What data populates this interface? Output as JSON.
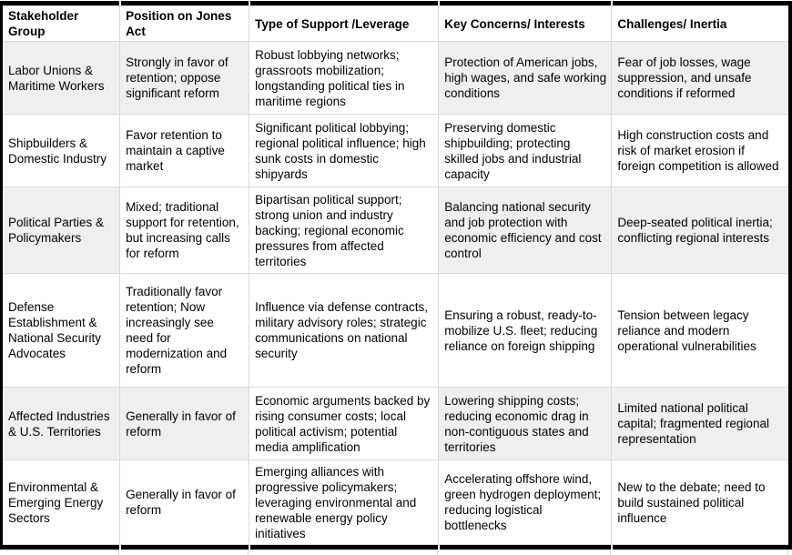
{
  "table": {
    "band_color": "#efefef",
    "grid_line_color": "#d9d9d9",
    "outer_border_color": "#000000",
    "columns": [
      {
        "label": "Stakeholder Group"
      },
      {
        "label": "Position on Jones Act"
      },
      {
        "label": "Type of Support /Leverage"
      },
      {
        "label": "Key Concerns/ Interests"
      },
      {
        "label": "Challenges/ Inertia"
      }
    ],
    "rows": [
      {
        "cells": [
          "Labor Unions & Maritime Workers",
          "Strongly in favor of retention; oppose significant reform",
          "Robust lobbying networks; grassroots mobilization; longstanding political ties in maritime regions",
          "Protection of American jobs, high wages, and safe working conditions",
          "Fear of job losses, wage suppression, and unsafe conditions if reformed"
        ]
      },
      {
        "cells": [
          "Shipbuilders & Domestic Industry",
          "Favor retention to maintain a captive market",
          "Significant political lobbying; regional political influence; high sunk costs in domestic shipyards",
          "Preserving domestic shipbuilding; protecting skilled jobs and industrial capacity",
          "High construction costs and risk of market erosion if foreign competition is allowed"
        ]
      },
      {
        "cells": [
          "Political Parties & Policymakers",
          "Mixed; traditional support for retention, but increasing calls for reform",
          "Bipartisan political support; strong union and industry backing; regional economic pressures from affected territories",
          "Balancing national security and job protection with economic efficiency and cost control",
          "Deep-seated political inertia; conflicting regional interests"
        ]
      },
      {
        "cells": [
          "Defense Establishment & National Security Advocates",
          "Traditionally favor retention; Now increasingly see need for modernization and reform",
          "Influence via defense contracts, military advisory roles; strategic communications on national security",
          "Ensuring a robust, ready-to-mobilize U.S. fleet; reducing reliance on foreign shipping",
          "Tension between legacy reliance and modern operational vulnerabilities"
        ]
      },
      {
        "cells": [
          "Affected Industries & U.S. Territories",
          "Generally in favor of reform",
          "Economic arguments backed by rising consumer costs; local political activism; potential media amplification",
          "Lowering shipping costs; reducing economic drag in non-contiguous states and territories",
          "Limited national political capital; fragmented regional representation"
        ]
      },
      {
        "cells": [
          "Environmental & Emerging Energy Sectors",
          "Generally in favor of reform",
          "Emerging alliances with progressive policymakers; leveraging environmental and renewable energy policy initiatives",
          "Accelerating offshore wind, green hydrogen deployment; reducing logistical bottlenecks",
          "New to the debate; need to build sustained political influence"
        ]
      }
    ]
  }
}
